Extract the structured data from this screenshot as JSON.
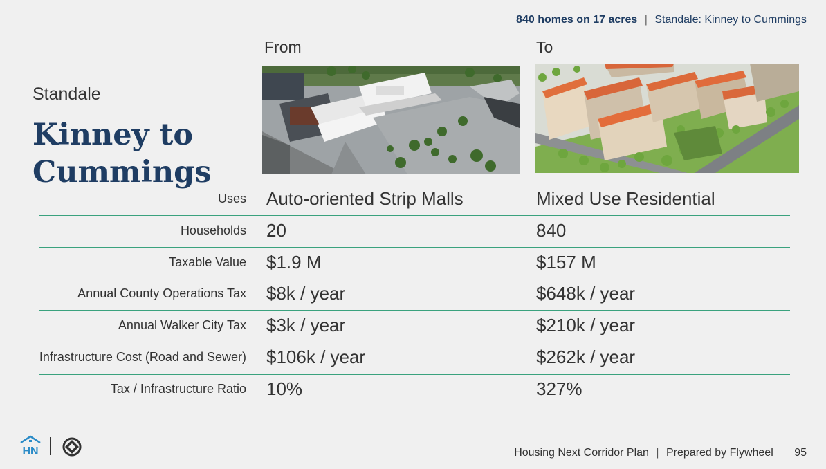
{
  "header": {
    "highlight": "840 homes on 17 acres",
    "separator": "|",
    "subtitle": "Standale: Kinney to Cummings"
  },
  "columns": {
    "from": "From",
    "to": "To"
  },
  "place": "Standale",
  "title": "Kinney to Cummings",
  "images": {
    "from": "aerial-photo-strip-malls",
    "to": "rendering-mixed-use-residential"
  },
  "rows": [
    {
      "label": "Uses",
      "from": "Auto-oriented Strip Malls",
      "to": "Mixed Use Residential"
    },
    {
      "label": "Households",
      "from": "20",
      "to": "840"
    },
    {
      "label": "Taxable Value",
      "from": "$1.9 M",
      "to": "$157 M"
    },
    {
      "label": "Annual County Operations Tax",
      "from": "$8k / year",
      "to": "$648k / year"
    },
    {
      "label": "Annual Walker City Tax",
      "from": "$3k / year",
      "to": "$210k / year"
    },
    {
      "label": "Infrastructure Cost (Road and Sewer)",
      "from": "$106k / year",
      "to": "$262k / year"
    },
    {
      "label": "Tax / Infrastructure Ratio",
      "from": "10%",
      "to": "327%"
    }
  ],
  "footer": {
    "plan": "Housing Next Corridor Plan",
    "separator": "|",
    "prepared": "Prepared by Flywheel",
    "page": "95"
  },
  "logos": {
    "housing_next": "HN",
    "flywheel": "flywheel-logo"
  },
  "colors": {
    "navy": "#1f3d63",
    "rule_green": "#3aa27e",
    "background": "#f0f0f0"
  }
}
